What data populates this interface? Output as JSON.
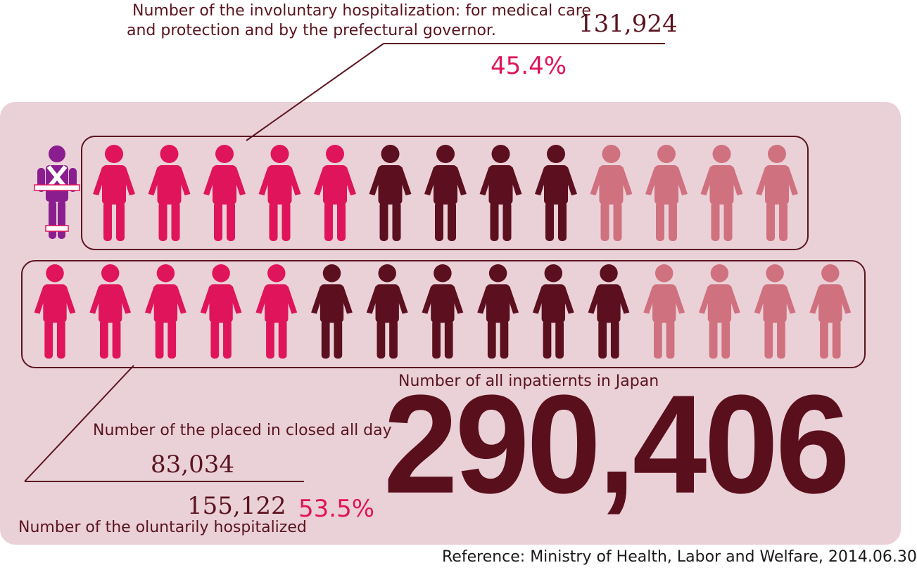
{
  "involuntary": {
    "label_line1": "Number of the involuntary hospitalization: for medical care",
    "label_line2": "and protection and by the prefectural governor.",
    "value": "131,924",
    "percent": "45.4%"
  },
  "closed": {
    "label": "Number of the placed in closed all day",
    "value": "83,034"
  },
  "voluntary": {
    "value": "155,122",
    "percent": "53.5%",
    "label": "Number of the oluntarily hospitalized"
  },
  "total": {
    "label": "Number of all inpatiernts  in Japan",
    "value": "290,406"
  },
  "reference": "Reference: Ministry of Health, Labor and Welfare, 2014.06.30",
  "colors": {
    "pink": "#e0145a",
    "dark": "#5c0f1e",
    "light": "#d0717f",
    "restrained": "#8b1e8f",
    "panel": "#ead1d7"
  },
  "figures": {
    "row1": [
      "pink",
      "pink",
      "pink",
      "pink",
      "pink",
      "dark",
      "dark",
      "dark",
      "dark",
      "light",
      "light",
      "light",
      "light"
    ],
    "row2": [
      "pink",
      "pink",
      "pink",
      "pink",
      "pink",
      "dark",
      "dark",
      "dark",
      "dark",
      "dark",
      "dark",
      "light",
      "light",
      "light",
      "light"
    ]
  }
}
